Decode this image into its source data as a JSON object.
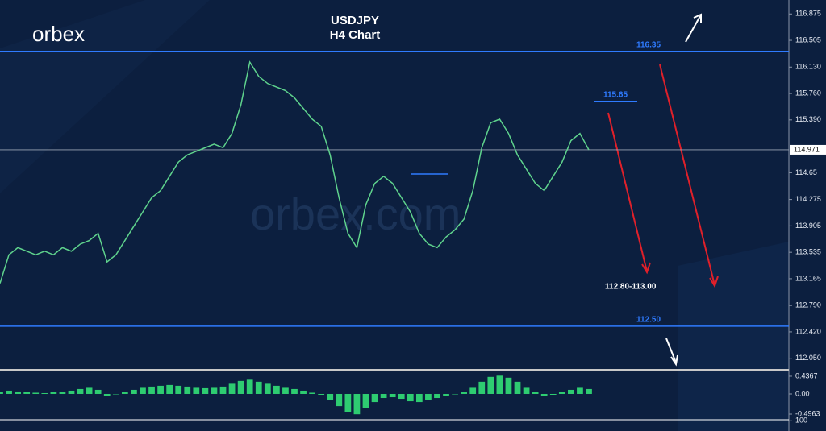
{
  "brand": "orbex",
  "watermark": "orbex.com",
  "chart_data": [
    {
      "type": "line",
      "title": "USDJPY",
      "subtitle": "H4 Chart",
      "color": "#5fd38d",
      "values": [
        113.1,
        113.5,
        113.6,
        113.55,
        113.5,
        113.55,
        113.5,
        113.6,
        113.55,
        113.65,
        113.7,
        113.8,
        113.4,
        113.5,
        113.7,
        113.9,
        114.1,
        114.3,
        114.4,
        114.6,
        114.8,
        114.9,
        114.95,
        115.0,
        115.05,
        115.0,
        115.2,
        115.6,
        116.2,
        116.0,
        115.9,
        115.85,
        115.8,
        115.7,
        115.55,
        115.4,
        115.3,
        114.9,
        114.3,
        113.8,
        113.6,
        114.2,
        114.5,
        114.6,
        114.5,
        114.3,
        114.1,
        113.8,
        113.65,
        113.6,
        113.75,
        113.85,
        114.0,
        114.4,
        115.0,
        115.35,
        115.4,
        115.2,
        114.9,
        114.7,
        114.5,
        114.4,
        114.6,
        114.8,
        115.1,
        115.2,
        114.97
      ],
      "ylim": [
        111.9,
        117.07
      ],
      "yticks": [
        116.875,
        116.505,
        {
          "value": 116.13,
          "label": "116.130"
        },
        {
          "value": 115.76,
          "label": "115.760"
        },
        {
          "value": 115.39,
          "label": "115.390"
        },
        114.65,
        114.275,
        113.905,
        113.535,
        113.165,
        {
          "value": 112.79,
          "label": "112.790"
        },
        {
          "value": 112.42,
          "label": "112.420"
        },
        {
          "value": 112.05,
          "label": "112.050"
        }
      ],
      "last_price": 114.971,
      "levels": [
        {
          "value": 116.35,
          "label": "116.35"
        },
        {
          "value": 115.65,
          "label": "115.65"
        },
        {
          "value": 112.5,
          "label": "112.50"
        }
      ],
      "target_zone": "112.80-113.00"
    },
    {
      "type": "bar",
      "color": "#2ecc71",
      "values": [
        0.05,
        0.08,
        0.06,
        0.04,
        0.03,
        0.02,
        0.04,
        0.05,
        0.08,
        0.12,
        0.15,
        0.1,
        -0.05,
        0.0,
        0.05,
        0.1,
        0.15,
        0.18,
        0.2,
        0.22,
        0.2,
        0.18,
        0.15,
        0.14,
        0.15,
        0.18,
        0.25,
        0.32,
        0.35,
        0.3,
        0.25,
        0.2,
        0.15,
        0.12,
        0.08,
        0.03,
        -0.02,
        -0.15,
        -0.3,
        -0.45,
        -0.5,
        -0.35,
        -0.2,
        -0.1,
        -0.08,
        -0.12,
        -0.18,
        -0.2,
        -0.15,
        -0.1,
        -0.05,
        0.0,
        0.05,
        0.15,
        0.3,
        0.42,
        0.45,
        0.4,
        0.3,
        0.15,
        0.05,
        -0.05,
        -0.02,
        0.05,
        0.1,
        0.15,
        0.12
      ],
      "ylim": [
        -0.615,
        0.575
      ],
      "yticks": [
        0.4367,
        {
          "value": 0,
          "label": "0.00"
        },
        -0.4963
      ]
    },
    {
      "type": "indicator",
      "ylim": [
        0,
        110
      ],
      "yticks": [
        100
      ]
    }
  ]
}
